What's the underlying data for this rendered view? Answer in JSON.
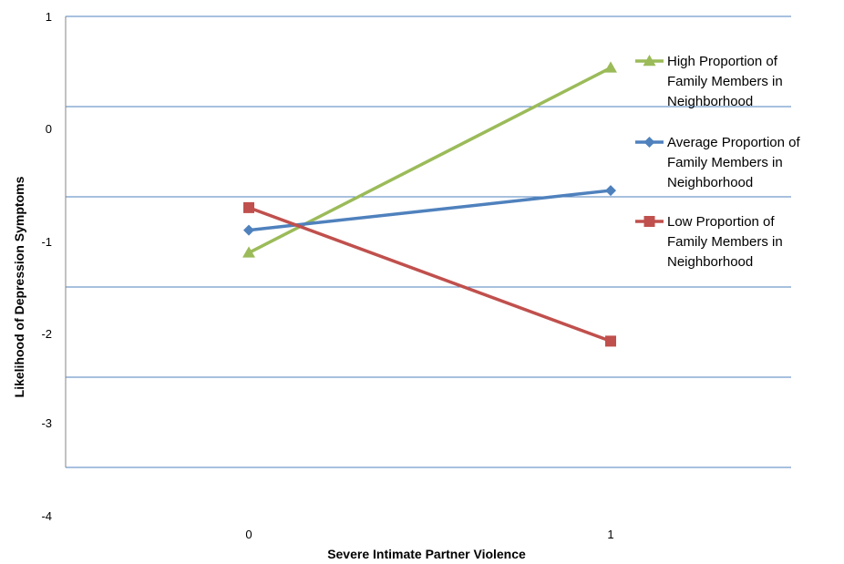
{
  "chart_data": {
    "type": "line",
    "title": "",
    "xlabel": "Severe Intimate Partner Violence",
    "ylabel": "Likelihood of Depression Symptoms",
    "x": [
      "0",
      "1"
    ],
    "ylim": [
      -4,
      1
    ],
    "yticks": [
      "1",
      "0",
      "-1",
      "-2",
      "-3",
      "-4"
    ],
    "grid": true,
    "legend_position": "right",
    "series": [
      {
        "name": "High Proportion of Family Members in Neighborhood",
        "name_lines": [
          "High Proportion of",
          "Family Members in",
          "Neighborhood"
        ],
        "values": [
          -1.62,
          0.43
        ],
        "color": "#9BBB59",
        "marker": "triangle"
      },
      {
        "name": "Average Proportion of Family Members in Neighborhood",
        "name_lines": [
          "Average Proportion of",
          "Family Members in",
          "Neighborhood"
        ],
        "values": [
          -1.37,
          -0.93
        ],
        "color": "#4F81BD",
        "marker": "diamond"
      },
      {
        "name": "Low Proportion of Family Members in Neighborhood",
        "name_lines": [
          "Low Proportion of",
          "Family Members in",
          "Neighborhood"
        ],
        "values": [
          -1.12,
          -2.6
        ],
        "color": "#C0504D",
        "marker": "square"
      }
    ]
  }
}
